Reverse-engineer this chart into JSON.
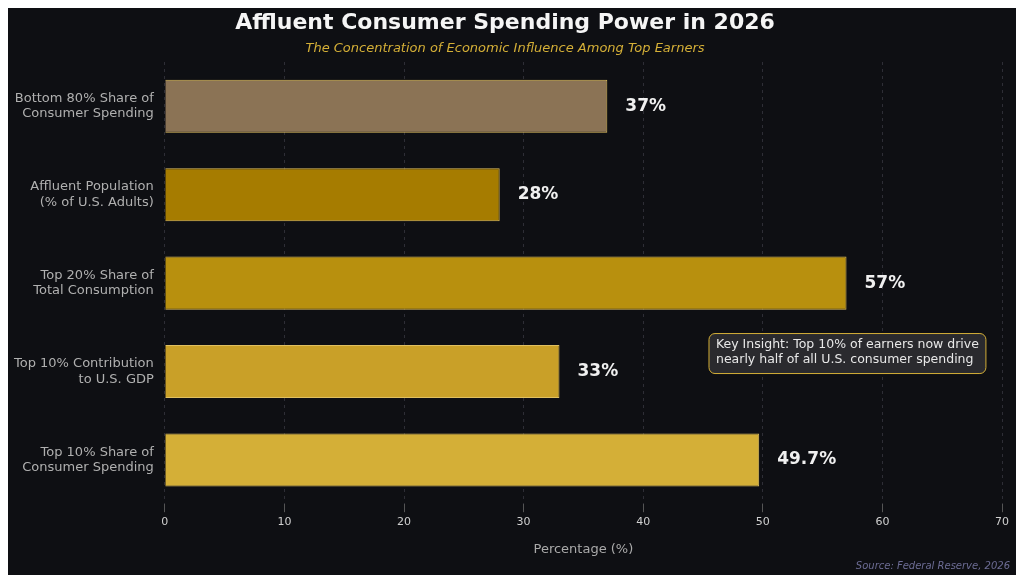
{
  "chart_data": {
    "type": "bar",
    "orientation": "horizontal",
    "title": "Affluent Consumer Spending Power in 2026",
    "subtitle": "The Concentration of Economic Influence Among Top Earners",
    "xlabel": "Percentage (%)",
    "categories": [
      "Bottom 80% Share of Consumer Spending",
      "Affluent Population (% of U.S. Adults)",
      "Top 20% Share of Total Consumption",
      "Top 10% Contribution to U.S. GDP",
      "Top 10% Share of Consumer Spending"
    ],
    "values": [
      37,
      28,
      57,
      33,
      49.7
    ],
    "colors": [
      "#8b7355",
      "#a67c00",
      "#b8900e",
      "#c9a028",
      "#d4af37"
    ],
    "value_labels": [
      "37%",
      "28%",
      "57%",
      "33%",
      "49.7%"
    ],
    "xlim": [
      0,
      70
    ],
    "xticks": [
      0,
      10,
      20,
      30,
      40,
      50,
      60,
      70
    ],
    "grid": "x",
    "legend": false,
    "annotations": [
      "Key Insight: Top 10% of earners now drive nearly half of all U.S. consumer spending",
      "Source: Federal Reserve, 2026"
    ]
  }
}
